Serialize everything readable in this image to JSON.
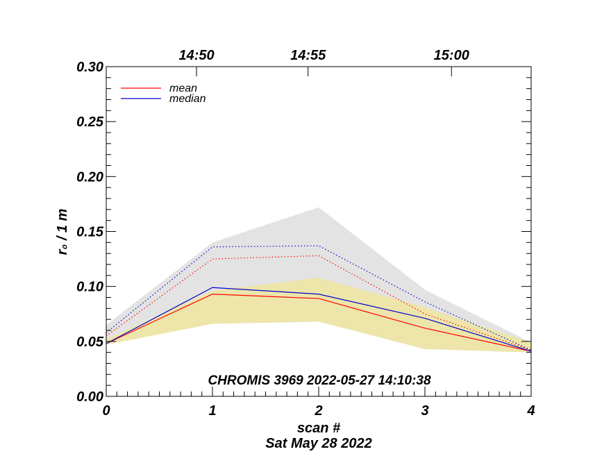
{
  "chart_data": {
    "type": "line",
    "x": [
      0,
      1,
      2,
      3,
      4
    ],
    "xlim": [
      0,
      4
    ],
    "ylim": [
      0.0,
      0.3
    ],
    "xlabel": "scan #",
    "ylabel": "r₀ / 1 m",
    "date_label": "Sat May 28 2022",
    "annotation": "CHROMIS 3969 2022-05-27 14:10:38",
    "x_ticks": [
      "0",
      "1",
      "2",
      "3",
      "4"
    ],
    "y_ticks": [
      {
        "value": 0.0,
        "label": "0.00"
      },
      {
        "value": 0.05,
        "label": "0.05"
      },
      {
        "value": 0.1,
        "label": "0.10"
      },
      {
        "value": 0.15,
        "label": "0.15"
      },
      {
        "value": 0.2,
        "label": "0.20"
      },
      {
        "value": 0.25,
        "label": "0.25"
      },
      {
        "value": 0.3,
        "label": "0.30"
      }
    ],
    "top_ticks": [
      {
        "value": 0.85,
        "label": "14:50"
      },
      {
        "value": 1.9,
        "label": "14:55"
      },
      {
        "value": 3.25,
        "label": "15:00"
      }
    ],
    "legend": [
      {
        "name": "mean",
        "color": "#ff0000"
      },
      {
        "name": "median",
        "color": "#0000cc"
      }
    ],
    "bands": [
      {
        "name": "outer range",
        "color": "#e3e3e3",
        "upper": [
          0.065,
          0.14,
          0.172,
          0.097,
          0.049
        ],
        "lower": [
          0.048,
          0.066,
          0.068,
          0.043,
          0.04
        ]
      },
      {
        "name": "inner range",
        "color": "#ede5aa",
        "upper": [
          0.052,
          0.096,
          0.108,
          0.081,
          0.049
        ],
        "lower": [
          0.047,
          0.066,
          0.068,
          0.043,
          0.04
        ]
      }
    ],
    "series": [
      {
        "name": "mean",
        "color": "#ff0000",
        "style": "solid",
        "values": [
          0.048,
          0.093,
          0.089,
          0.062,
          0.041
        ]
      },
      {
        "name": "median",
        "color": "#0000cc",
        "style": "solid",
        "values": [
          0.048,
          0.099,
          0.093,
          0.071,
          0.041
        ]
      },
      {
        "name": "mean upper",
        "color": "#ff0000",
        "style": "dotted",
        "values": [
          0.055,
          0.125,
          0.128,
          0.075,
          0.042
        ]
      },
      {
        "name": "median upper",
        "color": "#0000cc",
        "style": "dotted",
        "values": [
          0.058,
          0.136,
          0.137,
          0.086,
          0.042
        ]
      }
    ]
  }
}
